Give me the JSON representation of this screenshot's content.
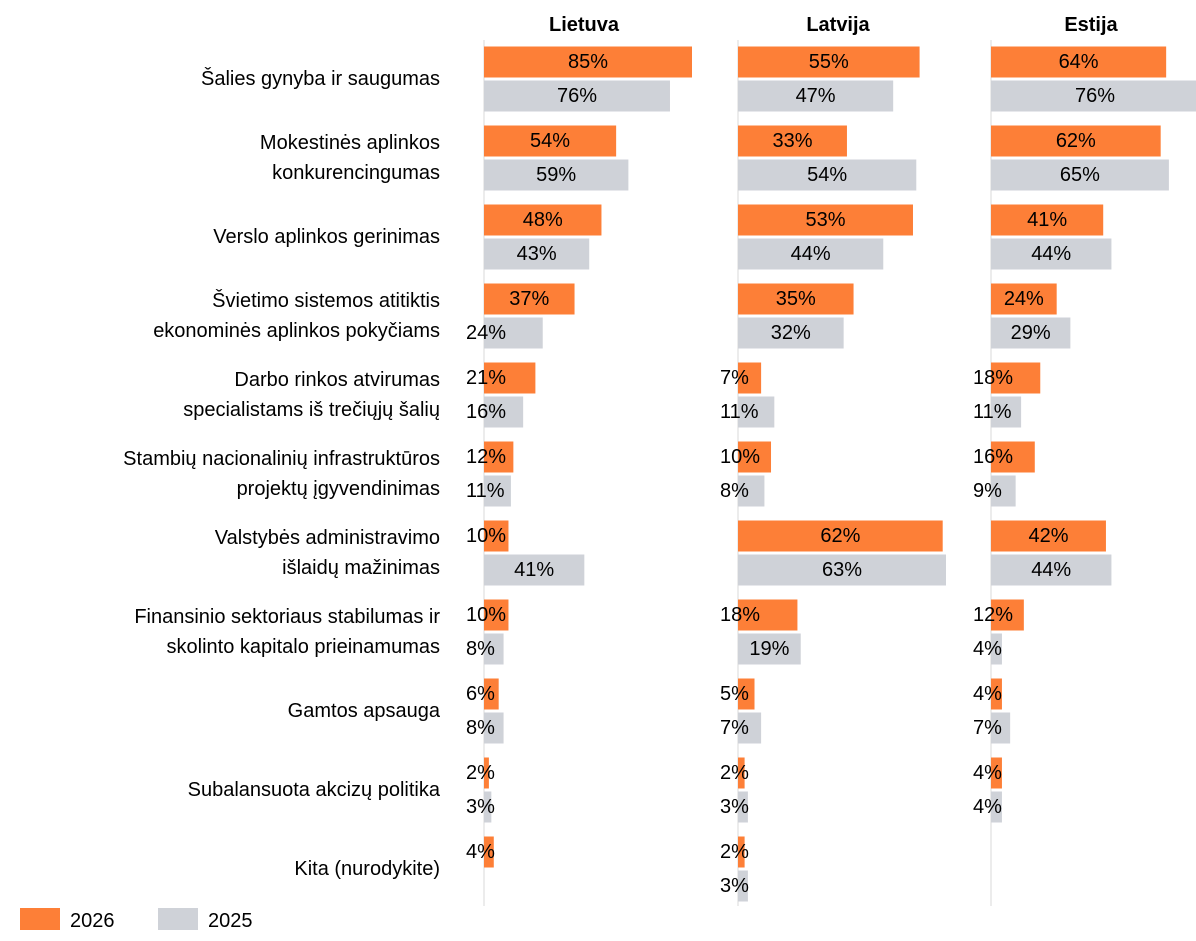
{
  "chart_data": {
    "type": "bar",
    "orientation": "horizontal",
    "categories": [
      "Šalies gynyba ir saugumas",
      "Mokestinės aplinkos\nkonkurencingumas",
      "Verslo aplinkos gerinimas",
      "Švietimo sistemos atitiktis\nekonominės aplinkos pokyčiams",
      "Darbo rinkos atvirumas\nspecialistams iš trečiųjų šalių",
      "Stambių nacionalinių infrastruktūros\nprojektų įgyvendinimas",
      "Valstybės administravimo\nišlaidų mažinimas",
      "Finansinio sektoriaus stabilumas ir\nskolinto kapitalo prieinamumas",
      "Gamtos apsauga",
      "Subalansuota akcizų politika",
      "Kita (nurodykite)"
    ],
    "series": [
      {
        "name": "2026",
        "color": "#fd7f37"
      },
      {
        "name": "2025",
        "color": "#cfd2d8"
      }
    ],
    "panels": [
      {
        "title": "Lietuva",
        "values": [
          [
            85,
            54,
            48,
            37,
            21,
            12,
            10,
            10,
            6,
            2,
            4
          ],
          [
            76,
            59,
            43,
            24,
            16,
            11,
            41,
            8,
            8,
            3,
            null
          ]
        ]
      },
      {
        "title": "Latvija",
        "values": [
          [
            55,
            33,
            53,
            35,
            7,
            10,
            62,
            18,
            5,
            2,
            2
          ],
          [
            47,
            54,
            44,
            32,
            11,
            8,
            63,
            19,
            7,
            3,
            3
          ]
        ]
      },
      {
        "title": "Estija",
        "values": [
          [
            64,
            62,
            41,
            24,
            18,
            16,
            42,
            12,
            4,
            4,
            null
          ],
          [
            76,
            65,
            44,
            29,
            11,
            9,
            44,
            4,
            7,
            4,
            null
          ]
        ]
      }
    ],
    "value_suffix_labels": true
  }
}
